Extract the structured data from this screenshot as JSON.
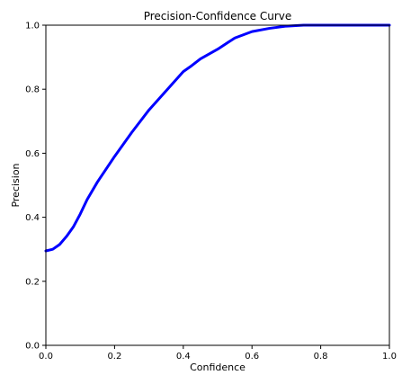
{
  "chart_data": {
    "type": "line",
    "title": "Precision-Confidence Curve",
    "xlabel": "Confidence",
    "ylabel": "Precision",
    "xlim": [
      0,
      1
    ],
    "ylim": [
      0,
      1
    ],
    "x_ticks": [
      0.0,
      0.2,
      0.4,
      0.6,
      0.8,
      1.0
    ],
    "y_ticks": [
      0.0,
      0.2,
      0.4,
      0.6,
      0.8,
      1.0
    ],
    "x_tick_labels": [
      "0.0",
      "0.2",
      "0.4",
      "0.6",
      "0.8",
      "1.0"
    ],
    "y_tick_labels": [
      "0.0",
      "0.2",
      "0.4",
      "0.6",
      "0.8",
      "1.0"
    ],
    "grid": false,
    "legend": "none",
    "series": [
      {
        "color": "#0000ff",
        "x": [
          0.0,
          0.02,
          0.04,
          0.06,
          0.08,
          0.1,
          0.12,
          0.15,
          0.2,
          0.25,
          0.3,
          0.35,
          0.4,
          0.42,
          0.45,
          0.5,
          0.55,
          0.6,
          0.65,
          0.7,
          0.75,
          0.8,
          0.9,
          1.0
        ],
        "y": [
          0.295,
          0.3,
          0.315,
          0.34,
          0.37,
          0.41,
          0.455,
          0.51,
          0.59,
          0.665,
          0.735,
          0.795,
          0.855,
          0.87,
          0.895,
          0.925,
          0.96,
          0.98,
          0.99,
          0.997,
          1.0,
          1.0,
          1.0,
          1.0
        ]
      }
    ]
  }
}
